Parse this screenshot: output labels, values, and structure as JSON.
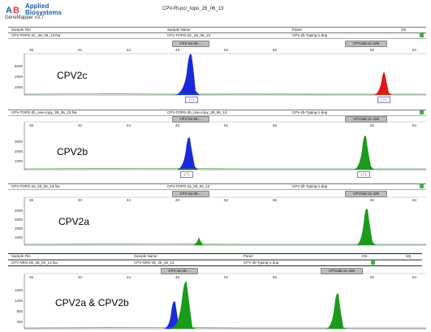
{
  "app": {
    "brand_line1": "Applied",
    "brand_line2": "Biosystems",
    "version": "GeneMapper v3.7",
    "run_title": "CPV-Rt-pcr_topo_28_06_13",
    "logo_colors": [
      "#1f5fa8",
      "#e23b3b"
    ]
  },
  "table_header": {
    "sample_file": "Sample File",
    "sample_name": "Sample Name",
    "panel": "Panel",
    "os": "OS",
    "sq": "SQ"
  },
  "panels": [
    {
      "sample_file": "CPV-TOPO-2C_28_06_13.fsa",
      "sample_name": "CPV-TOPO-2C_28_06_13",
      "panel": "CPV-2b-Typing-1-dup",
      "label": "CPV2c",
      "bin_left": "CPV-2a-2b-...",
      "bin_right": "CPV2ab-2c-426",
      "y_ticks": [
        "6000",
        "4000",
        "2000"
      ],
      "x_ticks": [
        "36",
        "40",
        "44",
        "48",
        "52",
        "56",
        "60",
        "64"
      ],
      "markers": [
        "[ ? ]",
        "[ ? ]"
      ],
      "peak_colors": [
        "#1a2ad8",
        "#e01818"
      ]
    },
    {
      "sample_file": "CPV-TOPO-2b_one-copy_28_06_13.fsa",
      "sample_name": "CPV-TOPO-2b_one-copy_28_06_13",
      "panel": "CPV-2b-Typing-1-dup",
      "label": "CPV2b",
      "bin_left": "CPV-2a-2b-...",
      "bin_right": "CPV2ab-2c-426",
      "y_ticks": [
        "3000",
        "2000",
        "1000"
      ],
      "x_ticks": [
        "36",
        "40",
        "44",
        "48",
        "52",
        "56",
        "60",
        "64"
      ],
      "markers": [
        "[ ? ]",
        "[ ? ]"
      ],
      "peak_colors": [
        "#1a2ad8",
        "#1c9a1c"
      ]
    },
    {
      "sample_file": "CPV-TOPO-2a_28_06_13.fsa",
      "sample_name": "CPV-TOPO-2a_28_06_13",
      "panel": "CPV-2b-Typing-1-dup",
      "label": "CPV2a",
      "bin_left": "CPV-2a-2b-...",
      "bin_right": "CPV2ab-2c-426",
      "y_ticks": [
        "4000",
        "3000",
        "2000",
        "1000"
      ],
      "x_ticks": [
        "36",
        "40",
        "44",
        "48",
        "52",
        "56",
        "60",
        "64"
      ],
      "markers": [],
      "peak_colors": [
        "#1c9a1c"
      ]
    },
    {
      "sample_file": "CPV-NRG-06_28_06_13.fsa",
      "sample_name": "CPV-NRG-06_28_06_13",
      "panel": "CPV-2b-Typing-1-dup",
      "label": "CPV2a & CPV2b",
      "bin_left": "CPV-2a-2b-...",
      "bin_right": "CPV2ab-2c-426",
      "y_ticks": [
        "1600",
        "1200",
        "800",
        "400"
      ],
      "x_ticks": [
        "36",
        "40",
        "44",
        "48",
        "52",
        "56",
        "60",
        "64"
      ],
      "markers": [],
      "peak_colors": [
        "#1a2ad8",
        "#1c9a1c"
      ]
    }
  ]
}
